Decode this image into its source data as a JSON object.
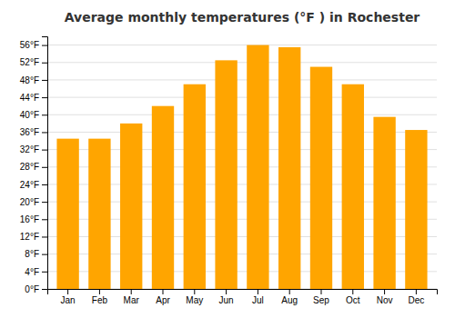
{
  "chart_data": {
    "type": "bar",
    "title": "Average monthly temperatures (°F ) in Rochester",
    "categories": [
      "Jan",
      "Feb",
      "Mar",
      "Apr",
      "May",
      "Jun",
      "Jul",
      "Aug",
      "Sep",
      "Oct",
      "Nov",
      "Dec"
    ],
    "values": [
      34.5,
      34.5,
      38.0,
      42.0,
      47.0,
      52.5,
      56.0,
      55.5,
      51.0,
      47.0,
      39.5,
      36.5
    ],
    "color": "#FFA500",
    "ylim": [
      0,
      58
    ],
    "yticks": [
      {
        "value": 0,
        "label": "0°F"
      },
      {
        "value": 4,
        "label": "4°F"
      },
      {
        "value": 8,
        "label": "8°F"
      },
      {
        "value": 12,
        "label": "12°F"
      },
      {
        "value": 16,
        "label": "16°F"
      },
      {
        "value": 20,
        "label": "20°F"
      },
      {
        "value": 24,
        "label": "24°F"
      },
      {
        "value": 28,
        "label": "28°F"
      },
      {
        "value": 32,
        "label": "32°F"
      },
      {
        "value": 36,
        "label": "36°F"
      },
      {
        "value": 40,
        "label": "40°F"
      },
      {
        "value": 44,
        "label": "44°F"
      },
      {
        "value": 48,
        "label": "48°F"
      },
      {
        "value": 52,
        "label": "52°F"
      },
      {
        "value": 56,
        "label": "56°F"
      }
    ],
    "grid": true
  }
}
